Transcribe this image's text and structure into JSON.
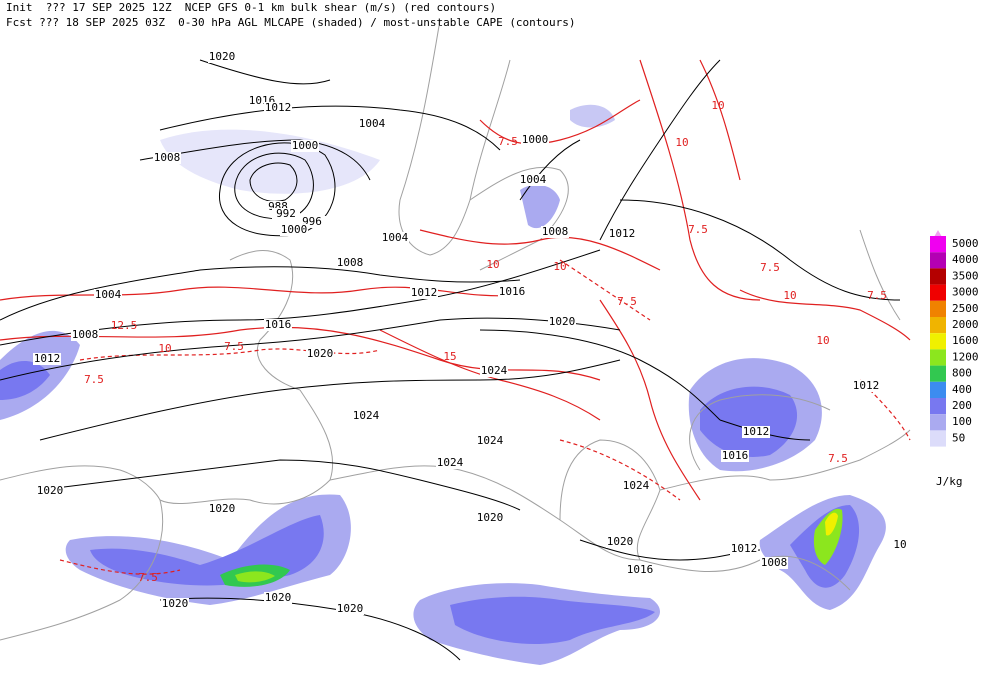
{
  "header": {
    "line1": "Init  ??? 17 SEP 2025 12Z  NCEP GFS 0-1 km bulk shear (m/s) (red contours)",
    "line2": "Fcst ??? 18 SEP 2025 03Z  0-30 hPa AGL MLCAPE (shaded) / most-unstable CAPE (contours)"
  },
  "legend": {
    "unit": "J/kg",
    "levels": [
      {
        "label": "5000",
        "color": "#f000f0"
      },
      {
        "label": "4000",
        "color": "#b400b4"
      },
      {
        "label": "3500",
        "color": "#b40000"
      },
      {
        "label": "3000",
        "color": "#f00000"
      },
      {
        "label": "2500",
        "color": "#f08200"
      },
      {
        "label": "2000",
        "color": "#f0b400"
      },
      {
        "label": "1600",
        "color": "#f0f000"
      },
      {
        "label": "1200",
        "color": "#8ce61e"
      },
      {
        "label": "800",
        "color": "#32c850"
      },
      {
        "label": "400",
        "color": "#3c8cf0"
      },
      {
        "label": "200",
        "color": "#7878f0"
      },
      {
        "label": "100",
        "color": "#aaaaf0"
      },
      {
        "label": "50",
        "color": "#dcdcfa"
      }
    ]
  },
  "isobar_labels": [
    "1020",
    "1016",
    "1012",
    "1004",
    "1008",
    "1000",
    "988",
    "992",
    "996",
    "1000",
    "1004",
    "1000",
    "1004",
    "1008",
    "1012",
    "1008",
    "1004",
    "1012",
    "1016",
    "1008",
    "1016",
    "1020",
    "1012",
    "1020",
    "1024",
    "1024",
    "1024",
    "1024",
    "1012",
    "1012",
    "1016",
    "1024",
    "1020",
    "1020",
    "1020",
    "1020",
    "1012",
    "1008",
    "1016",
    "1020",
    "1020",
    "1020",
    "10"
  ],
  "shear_labels": [
    "7.5",
    "10",
    "12.5",
    "15",
    "7.5",
    "7.5",
    "7.5",
    "10",
    "7.5",
    "10",
    "7.5",
    "10",
    "7.5",
    "10",
    "10",
    "10",
    "7.5",
    "7.5"
  ]
}
